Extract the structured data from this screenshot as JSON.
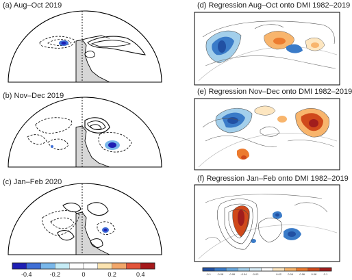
{
  "panels": {
    "a": {
      "title": "(a)  Aug–Oct 2019"
    },
    "b": {
      "title": "(b)  Nov–Dec 2019"
    },
    "c": {
      "title": "(c)  Jan–Feb 2020"
    },
    "d": {
      "title": "(d)  Regression Aug–Oct onto DMI 1982–2019"
    },
    "e": {
      "title": "(e)  Regression Nov–Dec onto DMI 1982–2019"
    },
    "f": {
      "title": "(f)  Regression Jan–Feb onto DMI 1982–2019"
    }
  },
  "colorbar_left": {
    "ticks": [
      "-0.4",
      "-0.2",
      "0",
      "0.2",
      "0.4"
    ],
    "colors": [
      "#1f1fb4",
      "#3f6fd6",
      "#79b7ea",
      "#c6ecf6",
      "#ffffff",
      "#ffffff",
      "#fbe3b0",
      "#f2a76a",
      "#e2543a",
      "#a6191b"
    ]
  },
  "colorbar_right": {
    "ticks": [
      "-0.1",
      "-0.08",
      "-0.06",
      "-0.04",
      "-0.02",
      "0.02",
      "0.04",
      "0.06",
      "0.08",
      "0.1"
    ],
    "colors": [
      "#2150a3",
      "#3a7bc8",
      "#6aa8dd",
      "#a3cfeb",
      "#d8ecf6",
      "#ffffff",
      "#fde6c0",
      "#f8b56d",
      "#ec7b2f",
      "#d0491b",
      "#a11d1d"
    ]
  },
  "colors": {
    "land": "#d6d6d6",
    "contour": "#111111",
    "outline": "#000000"
  }
}
